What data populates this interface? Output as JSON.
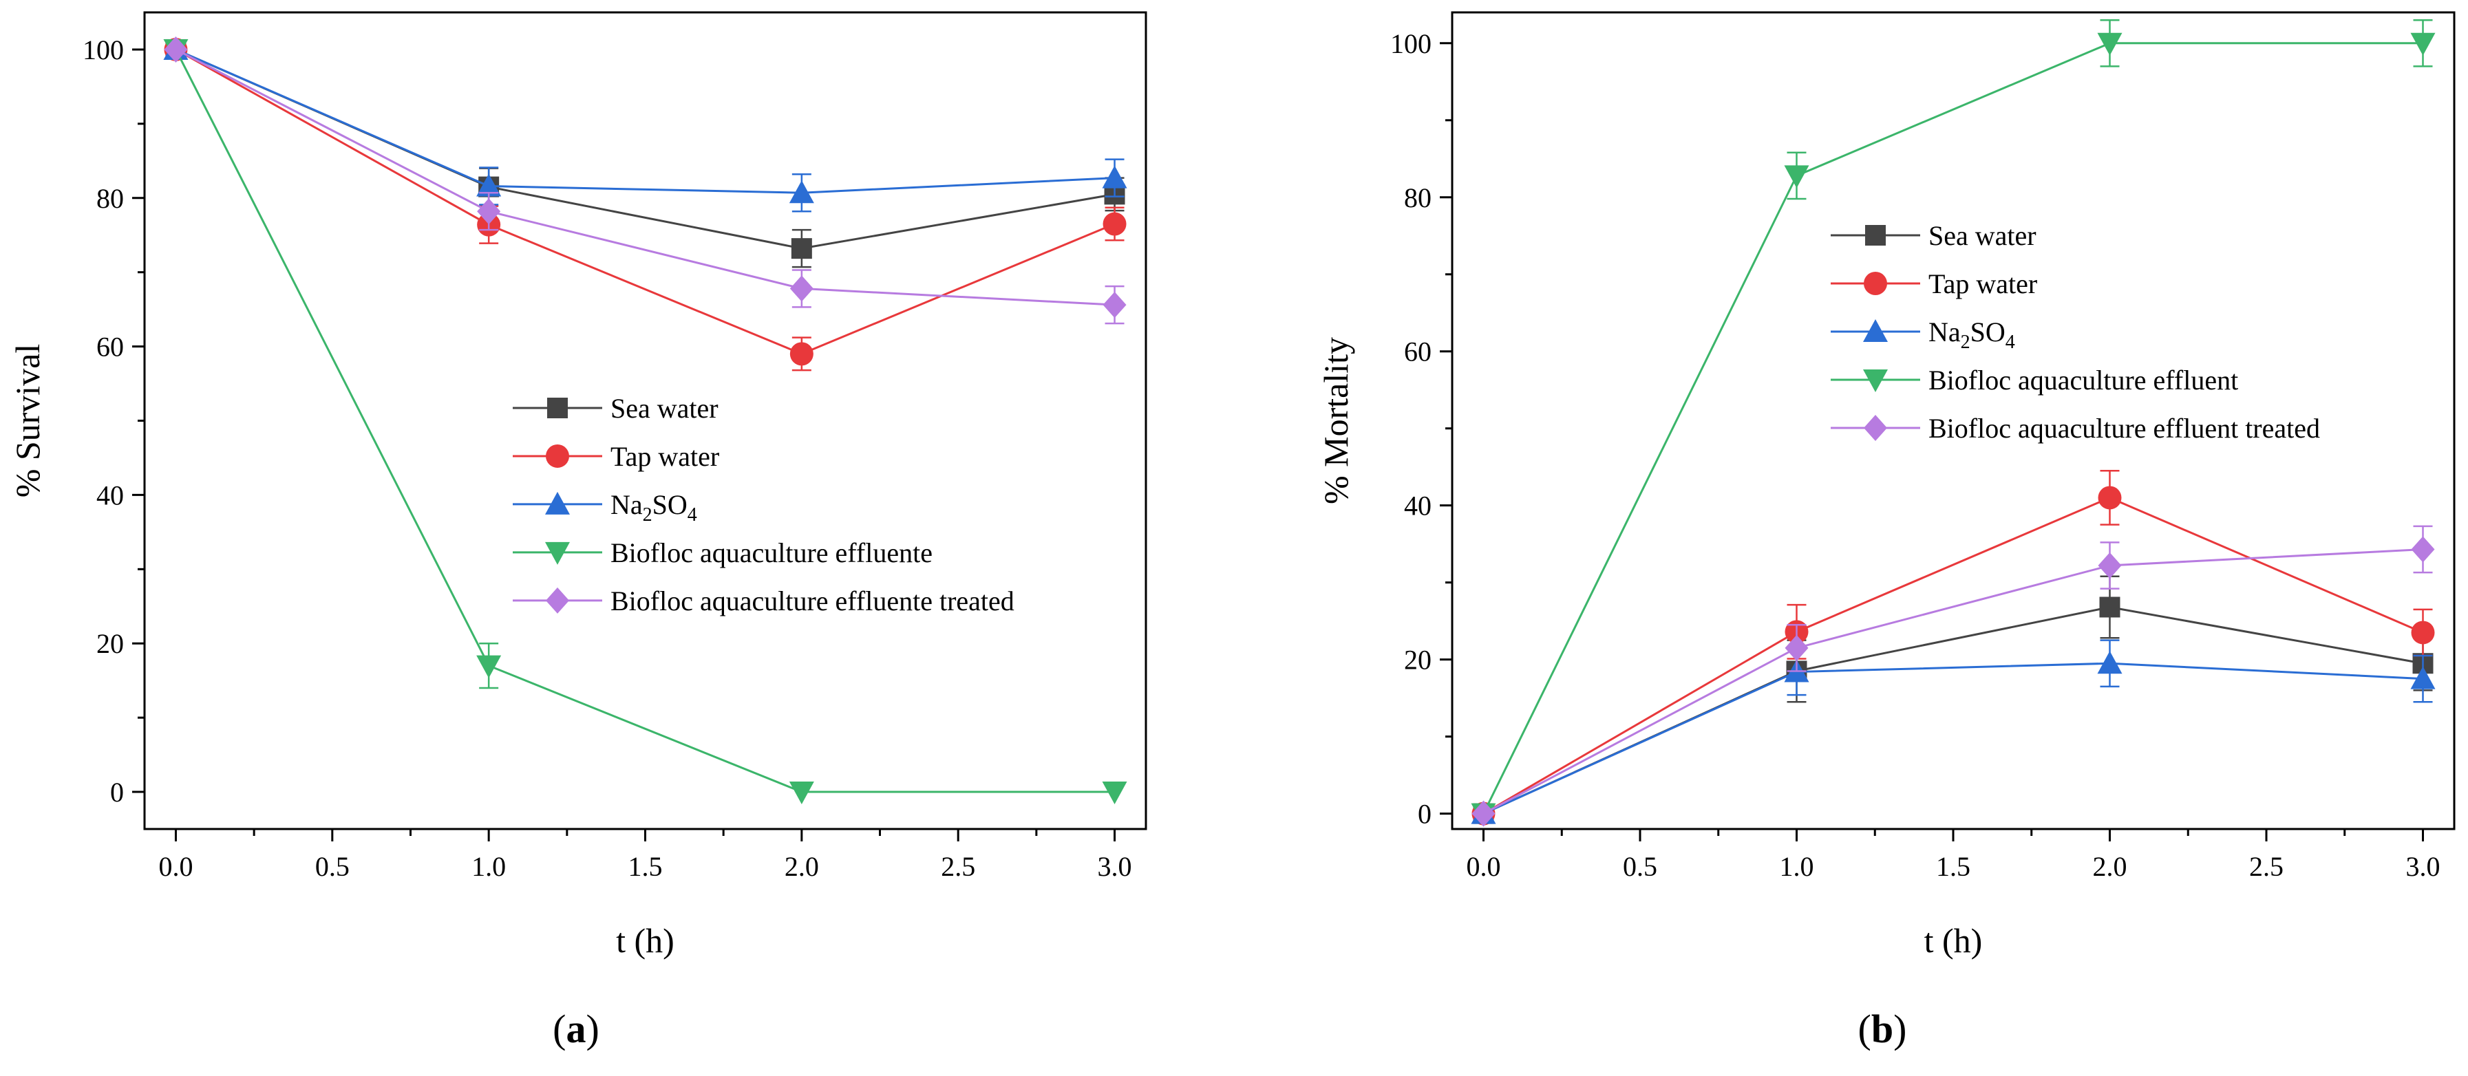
{
  "chart_data": [
    {
      "type": "line",
      "panel_label": "a",
      "ylabel": "% Survival",
      "xlabel": "t (h)",
      "xlim": [
        -0.1,
        3.1
      ],
      "ylim": [
        -5,
        105
      ],
      "xticks": [
        "0.0",
        "0.5",
        "1.0",
        "1.5",
        "2.0",
        "2.5",
        "3.0"
      ],
      "xtick_values": [
        0,
        0.5,
        1,
        1.5,
        2,
        2.5,
        3
      ],
      "yticks": [
        "0",
        "20",
        "40",
        "60",
        "80",
        "100"
      ],
      "ytick_values": [
        0,
        20,
        40,
        60,
        80,
        100
      ],
      "legend_position": "center-right",
      "x": [
        0,
        1,
        2,
        3
      ],
      "series": [
        {
          "name": "Sea water",
          "label_main": "Sea water",
          "label_sub": "",
          "label_tail": "",
          "color": "#444444",
          "marker": "square",
          "values": [
            100,
            81.5,
            73.2,
            80.5
          ],
          "errors": [
            0,
            2.5,
            2.5,
            2.2
          ]
        },
        {
          "name": "Tap water",
          "label_main": "Tap water",
          "label_sub": "",
          "label_tail": "",
          "color": "#e8383b",
          "marker": "circle",
          "values": [
            100,
            76.4,
            59,
            76.5
          ],
          "errors": [
            0,
            2.5,
            2.2,
            2.2
          ]
        },
        {
          "name": "Na2SO4",
          "label_main": "Na",
          "label_sub": "2",
          "label_tail": "SO",
          "label_sub2": "4",
          "color": "#2a6dd4",
          "marker": "triangle-up",
          "values": [
            100,
            81.6,
            80.7,
            82.7
          ],
          "errors": [
            0,
            2.5,
            2.5,
            2.5
          ]
        },
        {
          "name": "Biofloc aquaculture effluente",
          "label_main": "Biofloc aquaculture effluente",
          "label_sub": "",
          "label_tail": "",
          "color": "#3bb56a",
          "marker": "triangle-down",
          "values": [
            100,
            17,
            0,
            0
          ],
          "errors": [
            0,
            3,
            0,
            0
          ]
        },
        {
          "name": "Biofloc aquaculture effluente treated",
          "label_main": "Biofloc aquaculture effluente treated",
          "label_sub": "",
          "label_tail": "",
          "color": "#b77be0",
          "marker": "diamond",
          "values": [
            100,
            78.2,
            67.8,
            65.6
          ],
          "errors": [
            0,
            2.5,
            2.5,
            2.5
          ]
        }
      ]
    },
    {
      "type": "line",
      "panel_label": "b",
      "ylabel": "% Mortality",
      "xlabel": "t (h)",
      "xlim": [
        -0.1,
        3.1
      ],
      "ylim": [
        -2,
        104
      ],
      "xticks": [
        "0.0",
        "0.5",
        "1.0",
        "1.5",
        "2.0",
        "2.5",
        "3.0"
      ],
      "xtick_values": [
        0,
        0.5,
        1,
        1.5,
        2,
        2.5,
        3
      ],
      "yticks": [
        "0",
        "20",
        "40",
        "60",
        "80",
        "100"
      ],
      "ytick_values": [
        0,
        20,
        40,
        60,
        80,
        100
      ],
      "legend_position": "upper-right",
      "x": [
        0,
        1,
        2,
        3
      ],
      "series": [
        {
          "name": "Sea water",
          "label_main": "Sea water",
          "label_sub": "",
          "label_tail": "",
          "color": "#444444",
          "marker": "square",
          "values": [
            0,
            18.5,
            26.8,
            19.5
          ],
          "errors": [
            0,
            4,
            4,
            3.5
          ]
        },
        {
          "name": "Tap water",
          "label_main": "Tap water",
          "label_sub": "",
          "label_tail": "",
          "color": "#e8383b",
          "marker": "circle",
          "values": [
            0,
            23.6,
            41,
            23.5
          ],
          "errors": [
            0,
            3.5,
            3.5,
            3
          ]
        },
        {
          "name": "Na2SO4",
          "label_main": "Na",
          "label_sub": "2",
          "label_tail": "SO",
          "label_sub2": "4",
          "color": "#2a6dd4",
          "marker": "triangle-up",
          "values": [
            0,
            18.4,
            19.5,
            17.5
          ],
          "errors": [
            0,
            3,
            3,
            3
          ]
        },
        {
          "name": "Biofloc aquaculture effluent",
          "label_main": "Biofloc aquaculture effluent",
          "label_sub": "",
          "label_tail": "",
          "color": "#3bb56a",
          "marker": "triangle-down",
          "values": [
            0,
            82.8,
            100,
            100
          ],
          "errors": [
            0,
            3,
            3,
            3
          ]
        },
        {
          "name": "Biofloc aquaculture effluent treated",
          "label_main": "Biofloc aquaculture effluent treated",
          "label_sub": "",
          "label_tail": "",
          "color": "#b77be0",
          "marker": "diamond",
          "values": [
            0,
            21.5,
            32.2,
            34.3
          ],
          "errors": [
            0,
            3,
            3,
            3
          ]
        }
      ]
    }
  ]
}
